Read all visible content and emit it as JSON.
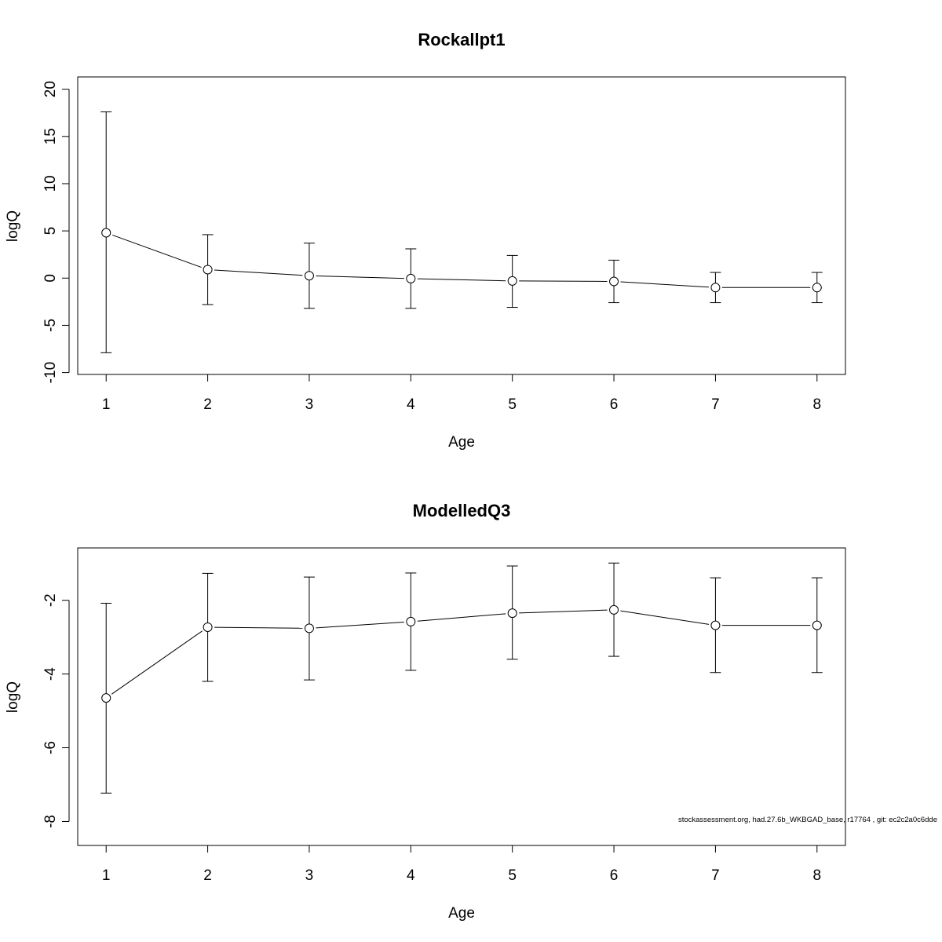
{
  "footer": "stockassessment.org, had.27.6b_WKBGAD_base, r17764 , git: ec2c2a0c6dde",
  "chart_data": [
    {
      "type": "line",
      "title": "Rockallpt1",
      "xlabel": "Age",
      "ylabel": "logQ",
      "x": [
        1,
        2,
        3,
        4,
        5,
        6,
        7,
        8
      ],
      "y": [
        4.8,
        0.9,
        0.25,
        -0.05,
        -0.3,
        -0.35,
        -1.0,
        -1.0
      ],
      "lower": [
        -7.9,
        -2.8,
        -3.2,
        -3.2,
        -3.1,
        -2.6,
        -2.6,
        -2.6
      ],
      "upper": [
        17.6,
        4.6,
        3.7,
        3.1,
        2.4,
        1.9,
        0.6,
        0.6
      ],
      "xlim": [
        0.72,
        8.28
      ],
      "ylim": [
        -10.2,
        21.3
      ],
      "xticks": [
        "1",
        "2",
        "3",
        "4",
        "5",
        "6",
        "7",
        "8"
      ],
      "yticks": [
        "-10",
        "-5",
        "0",
        "5",
        "10",
        "15",
        "20"
      ],
      "grid": false
    },
    {
      "type": "line",
      "title": "ModelledQ3",
      "xlabel": "Age",
      "ylabel": "logQ",
      "x": [
        1,
        2,
        3,
        4,
        5,
        6,
        7,
        8
      ],
      "y": [
        -4.65,
        -2.73,
        -2.76,
        -2.58,
        -2.35,
        -2.26,
        -2.68,
        -2.68
      ],
      "lower": [
        -7.23,
        -4.2,
        -4.16,
        -3.9,
        -3.6,
        -3.52,
        -3.96,
        -3.96
      ],
      "upper": [
        -2.08,
        -1.27,
        -1.37,
        -1.26,
        -1.07,
        -0.99,
        -1.39,
        -1.39
      ],
      "xlim": [
        0.72,
        8.28
      ],
      "ylim": [
        -8.65,
        -0.58
      ],
      "xticks": [
        "1",
        "2",
        "3",
        "4",
        "5",
        "6",
        "7",
        "8"
      ],
      "yticks": [
        "-8",
        "-6",
        "-4",
        "-2"
      ],
      "grid": false
    }
  ]
}
